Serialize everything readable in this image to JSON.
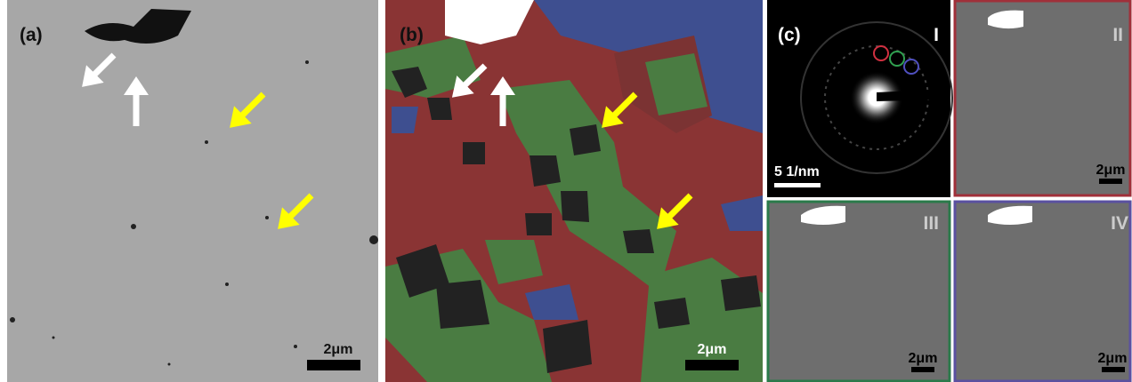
{
  "panels": [
    {
      "label": "(a)",
      "scale_bar": "2μm"
    },
    {
      "label": "(b)",
      "scale_bar": "2μm"
    },
    {
      "label": "(c)",
      "subpanels": [
        {
          "label": "I",
          "scale_bar": "5 1/nm"
        },
        {
          "label": "II",
          "scale_bar": "2μm"
        },
        {
          "label": "III",
          "scale_bar": "2μm"
        },
        {
          "label": "IV",
          "scale_bar": "2μm"
        }
      ]
    }
  ]
}
